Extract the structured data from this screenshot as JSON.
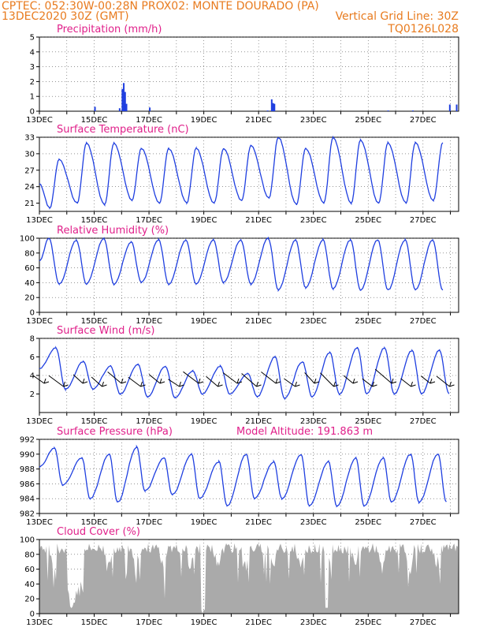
{
  "header": {
    "line1_left": "CPTEC:   052:30W-00:28N   PROX02: MONTE DOURADO (PA)",
    "line2_left": "13DEC2020 30Z (GMT)",
    "line2_right": "Vertical Grid Line: 30Z",
    "line3_right": "TQ0126L028"
  },
  "colors": {
    "header": "#e87b1f",
    "title": "#e0208a",
    "series": "#1f3fe0",
    "cloud": "#aaaaaa",
    "wind_arrow": "#000000"
  },
  "x_ticks": [
    "13DEC",
    "15DEC",
    "17DEC",
    "19DEC",
    "21DEC",
    "23DEC",
    "25DEC",
    "27DEC"
  ],
  "chart_data": [
    {
      "type": "bar",
      "title": "Precipitation (mm/h)",
      "ylim": [
        0,
        5
      ],
      "yticks": [
        "0",
        "1",
        "2",
        "3",
        "4",
        "5"
      ],
      "x_range_days": [
        0,
        15.3
      ],
      "bars": [
        {
          "x": 2.0,
          "value": 0.3
        },
        {
          "x": 2.9,
          "value": 0.2
        },
        {
          "x": 3.0,
          "value": 1.5
        },
        {
          "x": 3.05,
          "value": 1.9
        },
        {
          "x": 3.1,
          "value": 1.3
        },
        {
          "x": 3.15,
          "value": 0.5
        },
        {
          "x": 4.0,
          "value": 0.25
        },
        {
          "x": 8.3,
          "value": 0.05
        },
        {
          "x": 8.45,
          "value": 0.8
        },
        {
          "x": 8.5,
          "value": 0.55
        },
        {
          "x": 8.55,
          "value": 0.5
        },
        {
          "x": 14.95,
          "value": 0.45
        },
        {
          "x": 15.2,
          "value": 0.45
        },
        {
          "x": 12.7,
          "value": 0.05
        },
        {
          "x": 13.6,
          "value": 0.05
        }
      ]
    },
    {
      "type": "line",
      "title": "Surface Temperature (nC)",
      "ylim": [
        19.5,
        33
      ],
      "yticks": [
        "21",
        "24",
        "27",
        "30",
        "33"
      ],
      "min_values": [
        20.1,
        21.0,
        20.7,
        21.5,
        21.0,
        21.0,
        21.0,
        21.5,
        22.0,
        20.7,
        21.0,
        21.0,
        21.0,
        21.0,
        21.5,
        21.5
      ],
      "max_values": [
        29.0,
        32.0,
        32.0,
        31.0,
        31.0,
        31.0,
        31.0,
        31.5,
        33.0,
        31.0,
        33.0,
        32.5,
        32.0,
        32.0,
        32.0,
        31.0
      ]
    },
    {
      "type": "line",
      "title": "Relative Humidity (%)",
      "ylim": [
        0,
        100
      ],
      "yticks": [
        "0",
        "20",
        "40",
        "60",
        "80",
        "100"
      ],
      "min_values": [
        38,
        38,
        38,
        40,
        38,
        38,
        40,
        38,
        30,
        33,
        32,
        30,
        30,
        30,
        30,
        40
      ],
      "max_values": [
        100,
        97,
        100,
        95,
        98,
        98,
        98,
        98,
        100,
        98,
        98,
        98,
        98,
        98,
        98,
        95
      ]
    },
    {
      "type": "line",
      "title": "Surface Wind (m/s)",
      "ylim": [
        0,
        8
      ],
      "yticks": [
        "2",
        "4",
        "6",
        "8"
      ],
      "min_values": [
        2.5,
        2.5,
        2.0,
        1.7,
        1.6,
        2.0,
        2.0,
        1.7,
        1.5,
        1.7,
        2.0,
        2.0,
        2.0,
        2.0,
        2.0,
        2.0
      ],
      "max_values": [
        7.0,
        5.5,
        5.0,
        5.2,
        5.0,
        4.5,
        5.0,
        4.2,
        6.0,
        5.5,
        6.5,
        7.0,
        7.0,
        6.7,
        6.7,
        5.5
      ],
      "arrows_count": 22
    },
    {
      "type": "line",
      "title": "Surface Pressure (hPa)",
      "annotation": "Model Altitude: 191.863 m",
      "ylim": [
        982,
        992
      ],
      "yticks": [
        "982",
        "984",
        "986",
        "988",
        "990",
        "992"
      ],
      "min_values": [
        985.8,
        984.0,
        983.5,
        985.0,
        984.5,
        984.0,
        983.0,
        984.0,
        984.0,
        983.0,
        983.0,
        983.0,
        983.5,
        983.5,
        983.5,
        984.0
      ],
      "max_values": [
        990.8,
        989.5,
        990.0,
        991.0,
        989.5,
        990.0,
        989.0,
        990.0,
        989.0,
        990.0,
        989.0,
        989.5,
        989.5,
        990.0,
        990.0,
        990.0
      ]
    },
    {
      "type": "area",
      "title": "Cloud Cover (%)",
      "ylim": [
        0,
        100
      ],
      "yticks": [
        "0",
        "20",
        "40",
        "60",
        "80",
        "100"
      ]
    }
  ]
}
